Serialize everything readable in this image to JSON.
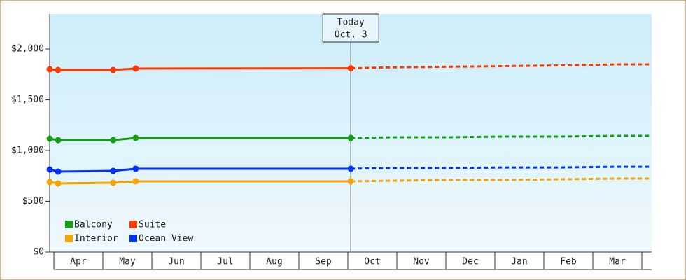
{
  "chart_data": {
    "type": "line",
    "categories": [
      "Apr",
      "May",
      "Jun",
      "Jul",
      "Aug",
      "Sep",
      "Oct",
      "Nov",
      "Dec",
      "Jan",
      "Feb",
      "Mar"
    ],
    "x": [
      -0.086,
      0.086,
      1.21,
      1.67,
      6.06
    ],
    "forecast_x": [
      6.06,
      6.97,
      8.0,
      9.19,
      10.33,
      11.5,
      12.2
    ],
    "xlim": [
      -0.086,
      12.2
    ],
    "ylim": [
      0,
      2345
    ],
    "yticks": [
      {
        "value": 0,
        "label": "$0"
      },
      {
        "value": 500,
        "label": "$500"
      },
      {
        "value": 1000,
        "label": "$1,000"
      },
      {
        "value": 1500,
        "label": "$1,500"
      },
      {
        "value": 2000,
        "label": "$2,000"
      }
    ],
    "annotation": {
      "title": "Today",
      "date": "Oct. 3",
      "x": 6.06
    },
    "legend": "bottom-left",
    "series": [
      {
        "name": "Balcony",
        "color": "#14a014",
        "values": [
          1117,
          1103,
          1103,
          1124,
          1124
        ],
        "forecast": [
          1124,
          1131,
          1131,
          1138,
          1138,
          1145,
          1145
        ]
      },
      {
        "name": "Suite",
        "color": "#ff3a00",
        "values": [
          1800,
          1793,
          1793,
          1807,
          1810
        ],
        "forecast": [
          1810,
          1820,
          1825,
          1831,
          1838,
          1848,
          1848
        ]
      },
      {
        "name": "Interior",
        "color": "#f5a300",
        "values": [
          690,
          676,
          683,
          697,
          697
        ],
        "forecast": [
          697,
          703,
          710,
          710,
          717,
          724,
          724
        ]
      },
      {
        "name": "Ocean View",
        "color": "#0033ff",
        "values": [
          814,
          793,
          800,
          821,
          821
        ],
        "forecast": [
          821,
          828,
          828,
          834,
          834,
          841,
          841
        ]
      }
    ]
  }
}
